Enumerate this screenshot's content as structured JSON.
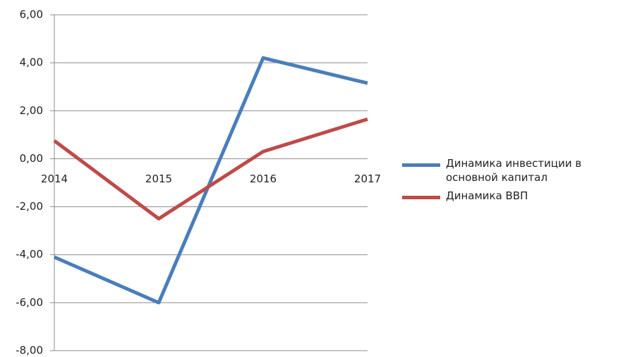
{
  "chart_data": {
    "type": "line",
    "categories": [
      "2014",
      "2015",
      "2016",
      "2017"
    ],
    "series": [
      {
        "name": "Динамика инвестиции в основной капитал",
        "color": "#4a7ebb",
        "values": [
          -4.1,
          -6.0,
          4.2,
          3.15
        ]
      },
      {
        "name": "Динамика ВВП",
        "color": "#be4b48",
        "values": [
          0.75,
          -2.5,
          0.3,
          1.65
        ]
      }
    ],
    "ylim": [
      -8,
      6
    ],
    "yticks": [
      {
        "value": -8,
        "label": "-8,00"
      },
      {
        "value": -6,
        "label": "-6,00"
      },
      {
        "value": -4,
        "label": "-4,00"
      },
      {
        "value": -2,
        "label": "-2,00"
      },
      {
        "value": 0,
        "label": "0,00"
      },
      {
        "value": 2,
        "label": "2,00"
      },
      {
        "value": 4,
        "label": "4,00"
      },
      {
        "value": 6,
        "label": "6,00"
      }
    ],
    "grid": true,
    "legend": "right"
  }
}
